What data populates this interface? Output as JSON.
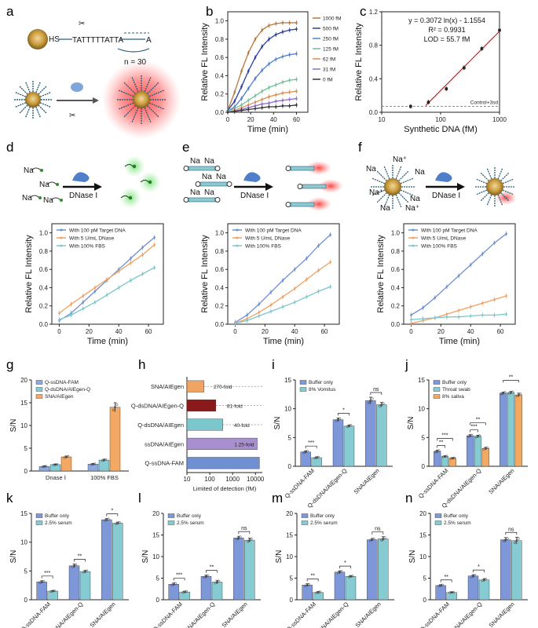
{
  "panels": {
    "a": {
      "label": "a",
      "hs": "HS",
      "sequence": "TATTTTTATTA",
      "tail": "A",
      "count": "n = 30",
      "colors": {
        "gold": "#c89a3c",
        "red": "#e23030",
        "dna": "#2a5f7a"
      }
    },
    "b": {
      "label": "b"
    },
    "c": {
      "label": "c"
    },
    "d": {
      "label": "d",
      "ion": "Na",
      "enzyme": "DNase I"
    },
    "e": {
      "label": "e",
      "ion": "Na",
      "enzyme": "DNase I"
    },
    "f": {
      "label": "f",
      "ion": "Na",
      "ion_plus": "Na⁺",
      "enzyme": "DNase I"
    },
    "g": {
      "label": "g"
    },
    "h": {
      "label": "h"
    },
    "i": {
      "label": "i"
    },
    "j": {
      "label": "j"
    },
    "k": {
      "label": "k"
    },
    "l": {
      "label": "l"
    },
    "m": {
      "label": "m"
    },
    "n": {
      "label": "n"
    }
  },
  "chart_data": [
    {
      "id": "b",
      "type": "line",
      "xlabel": "Time (min)",
      "ylabel": "Relative FL Intensity",
      "xlim": [
        0,
        70
      ],
      "ylim": [
        0,
        1.1
      ],
      "xticks": [
        0,
        20,
        40,
        60
      ],
      "yticks": [
        0.0,
        0.2,
        0.4,
        0.6,
        0.8,
        1.0
      ],
      "x": [
        0,
        6,
        12,
        18,
        24,
        30,
        36,
        42,
        48,
        54,
        60
      ],
      "legend_position": "right",
      "series": [
        {
          "name": "1000 fM",
          "color": "#b8763a",
          "values": [
            0.02,
            0.22,
            0.45,
            0.65,
            0.8,
            0.9,
            0.95,
            0.97,
            0.98,
            0.98,
            0.98
          ]
        },
        {
          "name": "500 fM",
          "color": "#2b3f9e",
          "values": [
            0.02,
            0.12,
            0.28,
            0.45,
            0.6,
            0.72,
            0.8,
            0.85,
            0.88,
            0.9,
            0.91
          ]
        },
        {
          "name": "250 fM",
          "color": "#4f7fd0",
          "values": [
            0.01,
            0.06,
            0.15,
            0.26,
            0.37,
            0.46,
            0.53,
            0.58,
            0.61,
            0.63,
            0.64
          ]
        },
        {
          "name": "125 fM",
          "color": "#6fbf9a",
          "values": [
            0.01,
            0.04,
            0.08,
            0.13,
            0.18,
            0.23,
            0.27,
            0.3,
            0.33,
            0.35,
            0.36
          ]
        },
        {
          "name": "62 fM",
          "color": "#e08b4f",
          "values": [
            0.0,
            0.02,
            0.05,
            0.08,
            0.11,
            0.14,
            0.17,
            0.19,
            0.21,
            0.22,
            0.23
          ]
        },
        {
          "name": "31 fM",
          "color": "#8a6ad0",
          "values": [
            0.0,
            0.01,
            0.03,
            0.05,
            0.07,
            0.09,
            0.1,
            0.12,
            0.13,
            0.14,
            0.15
          ]
        },
        {
          "name": "0 fM",
          "color": "#333333",
          "values": [
            0.0,
            0.01,
            0.02,
            0.03,
            0.04,
            0.05,
            0.06,
            0.06,
            0.07,
            0.07,
            0.08
          ]
        }
      ]
    },
    {
      "id": "c",
      "type": "scatter",
      "xlabel": "Synthetic DNA (fM)",
      "ylabel": "Relative FL Intensity",
      "xscale": "log",
      "xlim": [
        10,
        1000
      ],
      "ylim": [
        0,
        1.2
      ],
      "xticks": [
        10,
        100,
        1000
      ],
      "yticks": [
        0.0,
        0.4,
        0.8,
        1.2
      ],
      "x": [
        31,
        62,
        125,
        250,
        500,
        1000
      ],
      "values": [
        0.07,
        0.12,
        0.28,
        0.53,
        0.76,
        0.98
      ],
      "fit": {
        "slope": 0.3072,
        "intercept": -1.1554,
        "from": 55.7,
        "to": 1000
      },
      "baseline": 0.07,
      "annotations": [
        "y = 0.3072 ln(x) - 1.1554",
        "R² = 0.9931",
        "LOD = 55.7 fM"
      ],
      "baseline_label": "Control+3sd"
    },
    {
      "id": "d",
      "type": "line",
      "xlabel": "Time (min)",
      "ylabel": "Relative FL Intensity",
      "xlim": [
        -5,
        70
      ],
      "ylim": [
        0,
        1.1
      ],
      "xticks": [
        0,
        20,
        40,
        60
      ],
      "yticks": [
        0.0,
        0.2,
        0.4,
        0.6,
        0.8,
        1.0
      ],
      "x": [
        0,
        8,
        16,
        24,
        32,
        40,
        48,
        56,
        64
      ],
      "legend_position": "top-left",
      "series": [
        {
          "name": "With 100 pM Target DNA",
          "color": "#6f8fcf",
          "values": [
            0.04,
            0.12,
            0.24,
            0.36,
            0.48,
            0.6,
            0.72,
            0.84,
            0.95
          ]
        },
        {
          "name": "With 5 U/mL DNase",
          "color": "#f0a062",
          "values": [
            0.12,
            0.22,
            0.31,
            0.4,
            0.49,
            0.58,
            0.67,
            0.76,
            0.87
          ]
        },
        {
          "name": "With 100% FBS",
          "color": "#7cc7cc",
          "values": [
            0.05,
            0.1,
            0.17,
            0.24,
            0.32,
            0.4,
            0.48,
            0.55,
            0.62
          ]
        }
      ]
    },
    {
      "id": "e",
      "type": "line",
      "xlabel": "Time (min)",
      "ylabel": "Relative FL Intensity",
      "xlim": [
        -5,
        70
      ],
      "ylim": [
        0,
        1.1
      ],
      "xticks": [
        0,
        20,
        40,
        60
      ],
      "yticks": [
        0.0,
        0.2,
        0.4,
        0.6,
        0.8,
        1.0
      ],
      "x": [
        0,
        8,
        16,
        24,
        32,
        40,
        48,
        56,
        64
      ],
      "legend_position": "top-left",
      "series": [
        {
          "name": "With 100 pM Target DNA",
          "color": "#6f8fcf",
          "values": [
            0.02,
            0.1,
            0.22,
            0.35,
            0.48,
            0.6,
            0.72,
            0.86,
            0.98
          ]
        },
        {
          "name": "With 5 U/mL DNase",
          "color": "#f0a062",
          "values": [
            0.01,
            0.06,
            0.13,
            0.21,
            0.3,
            0.39,
            0.49,
            0.59,
            0.68
          ]
        },
        {
          "name": "With 100% FBS",
          "color": "#7cc7cc",
          "values": [
            0.01,
            0.04,
            0.09,
            0.14,
            0.19,
            0.24,
            0.3,
            0.36,
            0.41
          ]
        }
      ]
    },
    {
      "id": "f",
      "type": "line",
      "xlabel": "Time (min)",
      "ylabel": "Relative FL Intensity",
      "xlim": [
        -5,
        70
      ],
      "ylim": [
        0,
        1.1
      ],
      "xticks": [
        0,
        20,
        40,
        60
      ],
      "yticks": [
        0.0,
        0.2,
        0.4,
        0.6,
        0.8,
        1.0
      ],
      "x": [
        0,
        8,
        16,
        24,
        32,
        40,
        48,
        56,
        64
      ],
      "legend_position": "top-left",
      "series": [
        {
          "name": "With 100 pM Target DNA",
          "color": "#6f8fcf",
          "values": [
            0.1,
            0.18,
            0.29,
            0.41,
            0.53,
            0.65,
            0.77,
            0.89,
            0.99
          ]
        },
        {
          "name": "With 5 U/mL DNase",
          "color": "#f0a062",
          "values": [
            0.01,
            0.04,
            0.07,
            0.11,
            0.15,
            0.19,
            0.23,
            0.27,
            0.31
          ]
        },
        {
          "name": "With 100% FBS",
          "color": "#7cc7cc",
          "values": [
            0.05,
            0.06,
            0.07,
            0.08,
            0.08,
            0.09,
            0.1,
            0.1,
            0.11
          ]
        }
      ]
    },
    {
      "id": "g",
      "type": "bar",
      "ylabel": "S/N",
      "ylim": [
        0,
        20
      ],
      "yticks": [
        0,
        5,
        10,
        15,
        20
      ],
      "categories": [
        "Dnase Ⅰ",
        "100% FBS"
      ],
      "legend_position": "top-left",
      "series": [
        {
          "name": "Q-ssDNA-FAM",
          "color": "#8ea9df",
          "values": [
            1.0,
            1.5
          ],
          "errors": [
            0.1,
            0.15
          ]
        },
        {
          "name": "Q-dsDNA/AIEgen-Q",
          "color": "#86cbd1",
          "values": [
            1.4,
            2.4
          ],
          "errors": [
            0.1,
            0.2
          ]
        },
        {
          "name": "SNA/AIEgen",
          "color": "#f3a864",
          "values": [
            3.1,
            14.0
          ],
          "errors": [
            0.2,
            1.0
          ]
        }
      ]
    },
    {
      "id": "h",
      "type": "bar",
      "orientation": "horizontal",
      "xlabel": "Limited of detection (fM)",
      "xscale": "log",
      "xlim": [
        10,
        20000
      ],
      "xticks": [
        10,
        100,
        1000,
        10000
      ],
      "categories": [
        "SNA/AIEgen",
        "Q-dsDNA/AIEgen-Q",
        "Q-dsDNA/AIEgen",
        "ssDNA/AIEgen",
        "Q-ssDNA-FAM"
      ],
      "values": [
        55.7,
        185,
        375,
        12000,
        15000
      ],
      "colors": [
        "#f0a464",
        "#8a1a1a",
        "#7cc7cc",
        "#a88fd0",
        "#6f8fd2"
      ],
      "labels": [
        "270-fold",
        "81-fold",
        "40-fold",
        "1.25-fold",
        ""
      ]
    },
    {
      "id": "i",
      "type": "bar",
      "ylabel": "S/N",
      "ylim": [
        0,
        15
      ],
      "yticks": [
        0,
        5,
        10,
        15
      ],
      "categories": [
        "Q-ssDNA-FAM",
        "Q-dsDNA/AIEgen-Q",
        "SNA/AIEgen"
      ],
      "legend_position": "top-left",
      "series": [
        {
          "name": "Buffer only",
          "color": "#7d97d8",
          "values": [
            2.5,
            8.1,
            11.4
          ],
          "errors": [
            0.2,
            0.3,
            0.6
          ]
        },
        {
          "name": "8% Vomitus",
          "color": "#86cbd1",
          "values": [
            1.5,
            7.0,
            10.7
          ],
          "errors": [
            0.15,
            0.2,
            0.4
          ]
        }
      ],
      "significance": [
        "***",
        "*",
        "ns"
      ]
    },
    {
      "id": "j",
      "type": "bar",
      "ylabel": "S/N",
      "ylim": [
        0,
        15
      ],
      "yticks": [
        0,
        5,
        10,
        15
      ],
      "categories": [
        "Q-ssDNA-FAM",
        "Q-dsDNA/AIEgen-Q",
        "SNA/AIEgen"
      ],
      "legend_position": "top-left",
      "series": [
        {
          "name": "Buffer only",
          "color": "#7d97d8",
          "values": [
            2.6,
            5.3,
            12.7
          ],
          "errors": [
            0.2,
            0.2,
            0.2
          ]
        },
        {
          "name": "Throat swab",
          "color": "#86cbd1",
          "values": [
            1.7,
            5.2,
            12.8
          ],
          "errors": [
            0.1,
            0.2,
            0.2
          ]
        },
        {
          "name": "8% saliva",
          "color": "#f3a864",
          "values": [
            1.4,
            3.1,
            12.4
          ],
          "errors": [
            0.1,
            0.2,
            0.3
          ]
        }
      ],
      "significance": [
        "***",
        "**",
        "**",
        "***",
        "**",
        "ns"
      ]
    },
    {
      "id": "k",
      "type": "bar",
      "ylabel": "S/N",
      "ylim": [
        0,
        15
      ],
      "yticks": [
        0,
        5,
        10,
        15
      ],
      "categories": [
        "Q-ssDNA-FAM",
        "Q-dsDNA/AIEgen-Q",
        "SNA/AIEgen"
      ],
      "legend_position": "top-left",
      "series": [
        {
          "name": "Buffer only",
          "color": "#7d97d8",
          "values": [
            3.1,
            5.9,
            13.9
          ],
          "errors": [
            0.2,
            0.3,
            0.2
          ]
        },
        {
          "name": "2.5% serum",
          "color": "#86cbd1",
          "values": [
            1.5,
            4.9,
            13.3
          ],
          "errors": [
            0.1,
            0.2,
            0.2
          ]
        }
      ],
      "significance": [
        "***",
        "**",
        "*"
      ]
    },
    {
      "id": "l",
      "type": "bar",
      "ylabel": "S/N",
      "ylim": [
        0,
        20
      ],
      "yticks": [
        0,
        5,
        10,
        15,
        20
      ],
      "categories": [
        "Q-ssDNA-FAM",
        "Q-dsDNA/AIEgen-Q",
        "SNA/AIEgen"
      ],
      "legend_position": "top-left",
      "series": [
        {
          "name": "Buffer only",
          "color": "#7d97d8",
          "values": [
            3.6,
            5.4,
            14.3
          ],
          "errors": [
            0.3,
            0.3,
            0.4
          ]
        },
        {
          "name": "2.5% serum",
          "color": "#86cbd1",
          "values": [
            1.8,
            4.1,
            13.8
          ],
          "errors": [
            0.2,
            0.4,
            0.5
          ]
        }
      ],
      "significance": [
        "***",
        "**",
        "ns"
      ]
    },
    {
      "id": "m",
      "type": "bar",
      "ylabel": "S/N",
      "ylim": [
        0,
        20
      ],
      "yticks": [
        0,
        5,
        10,
        15,
        20
      ],
      "categories": [
        "Q-ssDNA-FAM",
        "Q-dsDNA/AIEgen-Q",
        "SNA/AIEgen"
      ],
      "legend_position": "top-left",
      "series": [
        {
          "name": "Buffer only",
          "color": "#7d97d8",
          "values": [
            3.4,
            6.4,
            13.9
          ],
          "errors": [
            0.3,
            0.3,
            0.3
          ]
        },
        {
          "name": "2.5% serum",
          "color": "#86cbd1",
          "values": [
            1.7,
            5.4,
            14.1
          ],
          "errors": [
            0.2,
            0.2,
            0.5
          ]
        }
      ],
      "significance": [
        "**",
        "*",
        "ns"
      ]
    },
    {
      "id": "n",
      "type": "bar",
      "ylabel": "S/N",
      "ylim": [
        0,
        20
      ],
      "yticks": [
        0,
        5,
        10,
        15,
        20
      ],
      "categories": [
        "Q-ssDNA-FAM",
        "Q-dsDNA/AIEgen-Q",
        "SNA/AIEgen"
      ],
      "legend_position": "top-left",
      "series": [
        {
          "name": "Buffer only",
          "color": "#7d97d8",
          "values": [
            3.3,
            5.5,
            13.9
          ],
          "errors": [
            0.2,
            0.3,
            0.5
          ]
        },
        {
          "name": "2.5% serum",
          "color": "#86cbd1",
          "values": [
            1.7,
            4.6,
            13.7
          ],
          "errors": [
            0.1,
            0.3,
            0.8
          ]
        }
      ],
      "significance": [
        "**",
        "*",
        "ns"
      ]
    }
  ]
}
